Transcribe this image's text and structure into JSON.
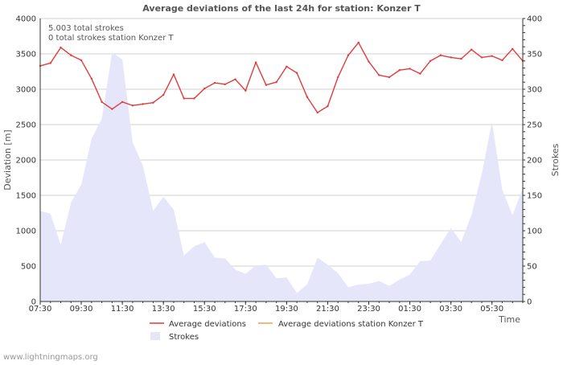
{
  "chart_data": {
    "type": "line",
    "title": "Average deviations of the last 24h for station: Konzer T",
    "annotations": [
      "5.003 total strokes",
      "0 total strokes station Konzer T"
    ],
    "xlabel": "Time",
    "ylabel": "Deviation  [m]",
    "y2label": "Strokes",
    "x_tick_labels": [
      "07:30",
      "09:30",
      "11:30",
      "13:30",
      "15:30",
      "17:30",
      "19:30",
      "21:30",
      "23:30",
      "01:30",
      "03:30",
      "05:30"
    ],
    "ylim": [
      0,
      4000
    ],
    "y_ticks": [
      0,
      500,
      1000,
      1500,
      2000,
      2500,
      3000,
      3500,
      4000
    ],
    "y2lim": [
      0,
      400
    ],
    "y2_ticks": [
      0,
      50,
      100,
      150,
      200,
      250,
      300,
      350,
      400
    ],
    "x_range_hours": [
      0,
      23.5
    ],
    "grid": true,
    "series": [
      {
        "name": "Average deviations",
        "color": "#e03c3c",
        "axis": "left",
        "kind": "line",
        "x": [
          0,
          0.5,
          1,
          1.5,
          2,
          2.5,
          3,
          3.5,
          4,
          4.5,
          5,
          5.5,
          6,
          6.5,
          7,
          7.5,
          8,
          8.5,
          9,
          9.5,
          10,
          10.5,
          11,
          11.5,
          12,
          12.5,
          13,
          13.5,
          14,
          14.5,
          15,
          15.5,
          16,
          16.5,
          17,
          17.5,
          18,
          18.5,
          19,
          19.5,
          20,
          20.5,
          21,
          21.5,
          22,
          22.5,
          23,
          23.5
        ],
        "values": [
          3330,
          3370,
          3590,
          3480,
          3410,
          3150,
          2820,
          2720,
          2820,
          2770,
          2790,
          2810,
          2920,
          3210,
          2870,
          2870,
          3010,
          3090,
          3070,
          3140,
          2980,
          3380,
          3060,
          3100,
          3320,
          3230,
          2890,
          2670,
          2760,
          3170,
          3480,
          3660,
          3390,
          3200,
          3170,
          3270,
          3290,
          3220,
          3400,
          3480,
          3450,
          3430,
          3560,
          3450,
          3470,
          3410,
          3570,
          3400
        ]
      },
      {
        "name": "Average deviations station Konzer T",
        "color": "#f0a050",
        "axis": "left",
        "kind": "line",
        "x": [],
        "values": []
      },
      {
        "name": "Strokes",
        "color": "#e6e6fa",
        "axis": "right",
        "kind": "area",
        "x": [
          0,
          0.5,
          1,
          1.5,
          2,
          2.5,
          3,
          3.5,
          4,
          4.5,
          5,
          5.5,
          6,
          6.5,
          7,
          7.5,
          8,
          8.5,
          9,
          9.5,
          10,
          10.5,
          11,
          11.5,
          12,
          12.5,
          13,
          13.5,
          14,
          14.5,
          15,
          15.5,
          16,
          16.5,
          17,
          17.5,
          18,
          18.5,
          19,
          19.5,
          20,
          20.5,
          21,
          21.5,
          22,
          22.5,
          23,
          23.5
        ],
        "values": [
          128,
          124,
          80,
          140,
          165,
          230,
          258,
          352,
          342,
          225,
          192,
          128,
          148,
          130,
          65,
          78,
          84,
          62,
          61,
          45,
          39,
          51,
          52,
          33,
          34,
          12,
          24,
          62,
          52,
          40,
          20,
          24,
          25,
          29,
          22,
          31,
          38,
          57,
          58,
          81,
          104,
          84,
          122,
          180,
          254,
          158,
          122,
          160
        ]
      }
    ],
    "legend": [
      "Average deviations",
      "Average deviations station Konzer T",
      "Strokes"
    ]
  },
  "footer": "www.lightningmaps.org"
}
